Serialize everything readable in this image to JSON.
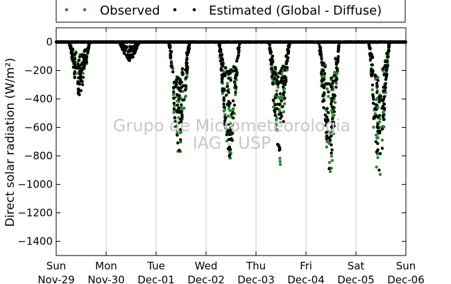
{
  "chart_data": {
    "type": "scatter",
    "ylabel": "Direct solar radiation (W/m²)",
    "ylim": [
      -1500,
      100
    ],
    "yticks": [
      0,
      -200,
      -400,
      -600,
      -800,
      -1000,
      -1200,
      -1400
    ],
    "ytick_labels": [
      "0",
      "−200",
      "−400",
      "−600",
      "−800",
      "−1000",
      "−1200",
      "−1400"
    ],
    "xlim_days": [
      0,
      7
    ],
    "x_ticks": [
      {
        "day": "Sun",
        "date": "Nov-29"
      },
      {
        "day": "Mon",
        "date": "Nov-30"
      },
      {
        "day": "Tue",
        "date": "Dec-01"
      },
      {
        "day": "Wed",
        "date": "Dec-02"
      },
      {
        "day": "Thu",
        "date": "Dec-03"
      },
      {
        "day": "Fri",
        "date": "Dec-04"
      },
      {
        "day": "Sat",
        "date": "Dec-05"
      },
      {
        "day": "Sun",
        "date": "Dec-06"
      }
    ],
    "grid": "vertical",
    "legend_position": "top-center",
    "series": [
      {
        "name": "Observed",
        "color": "#228b22",
        "daily_min": [
          -220,
          -60,
          -770,
          -815,
          -860,
          -910,
          -930
        ]
      },
      {
        "name": "Estimated (Global - Diffuse)",
        "color": "#000000",
        "daily_min": [
          -370,
          -130,
          -760,
          -800,
          -760,
          -890,
          -900
        ]
      }
    ]
  },
  "watermark": {
    "line1": "Grupo de Micrometeorologia",
    "line2": "IAG - USP"
  }
}
